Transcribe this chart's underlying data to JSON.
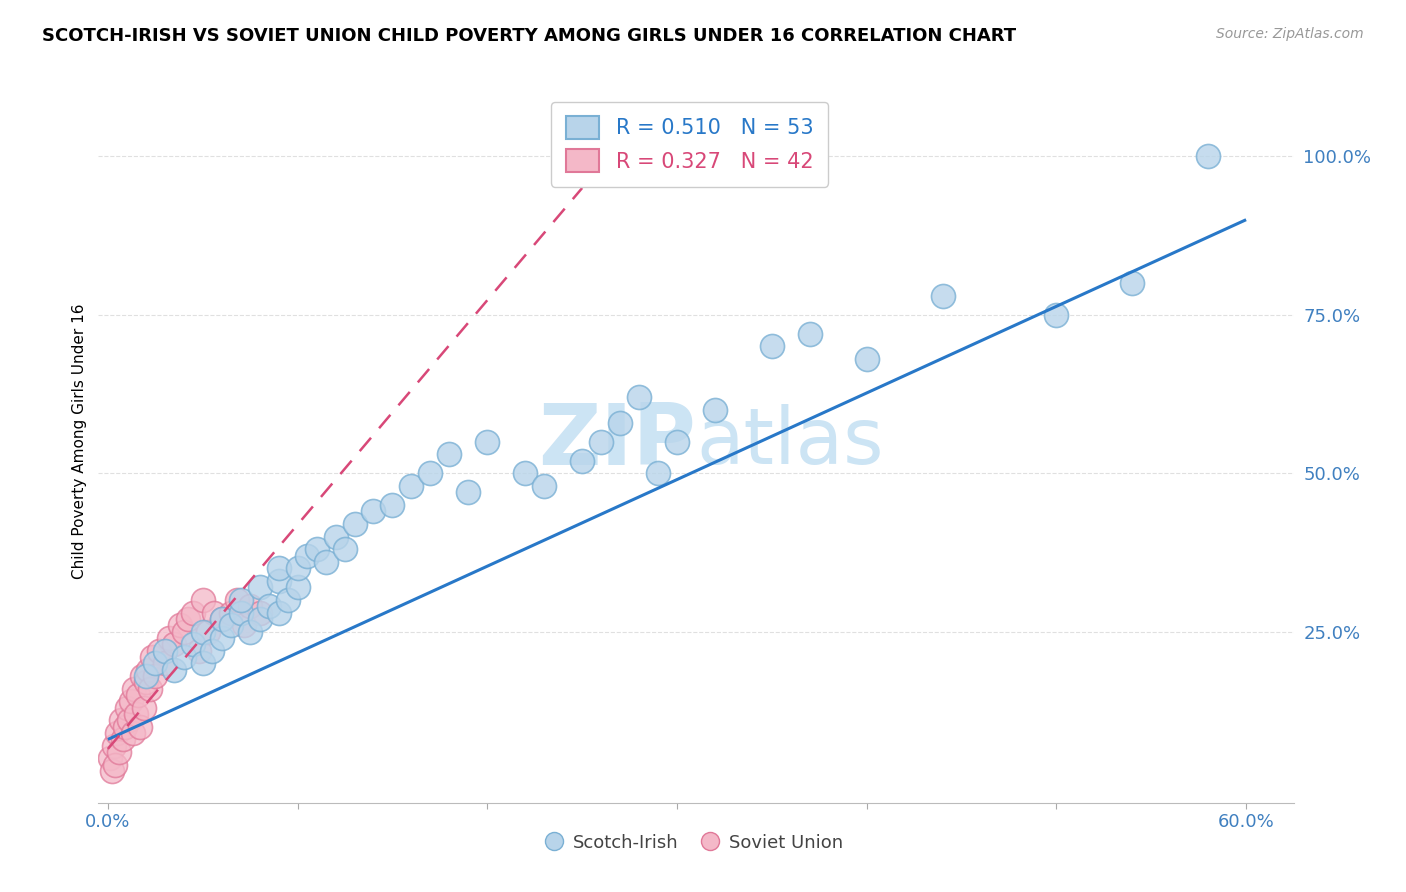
{
  "title": "SCOTCH-IRISH VS SOVIET UNION CHILD POVERTY AMONG GIRLS UNDER 16 CORRELATION CHART",
  "source": "Source: ZipAtlas.com",
  "ylabel": "Child Poverty Among Girls Under 16",
  "xlim": [
    -0.005,
    0.625
  ],
  "ylim": [
    -0.02,
    1.12
  ],
  "xtick_positions": [
    0.0,
    0.1,
    0.2,
    0.3,
    0.4,
    0.5,
    0.6
  ],
  "xticklabels": [
    "0.0%",
    "",
    "",
    "",
    "",
    "",
    "60.0%"
  ],
  "ytick_positions": [
    0.25,
    0.5,
    0.75,
    1.0
  ],
  "ytick_labels": [
    "25.0%",
    "50.0%",
    "75.0%",
    "100.0%"
  ],
  "blue_R": 0.51,
  "blue_N": 53,
  "pink_R": 0.327,
  "pink_N": 42,
  "blue_color": "#b8d4ea",
  "blue_edge": "#7ab0d4",
  "pink_color": "#f4b8c8",
  "pink_edge": "#e07898",
  "blue_line_color": "#2878c8",
  "pink_line_color": "#d84878",
  "grid_color": "#e0e0e0",
  "watermark_color": "#cce4f4",
  "background_color": "#ffffff",
  "scotch_irish_x": [
    0.02,
    0.025,
    0.03,
    0.035,
    0.04,
    0.045,
    0.05,
    0.05,
    0.055,
    0.06,
    0.06,
    0.065,
    0.07,
    0.07,
    0.075,
    0.08,
    0.08,
    0.085,
    0.09,
    0.09,
    0.09,
    0.095,
    0.1,
    0.1,
    0.105,
    0.11,
    0.115,
    0.12,
    0.125,
    0.13,
    0.14,
    0.15,
    0.16,
    0.17,
    0.18,
    0.19,
    0.2,
    0.22,
    0.23,
    0.25,
    0.26,
    0.27,
    0.28,
    0.29,
    0.3,
    0.32,
    0.35,
    0.37,
    0.4,
    0.44,
    0.5,
    0.54,
    0.58
  ],
  "scotch_irish_y": [
    0.18,
    0.2,
    0.22,
    0.19,
    0.21,
    0.23,
    0.2,
    0.25,
    0.22,
    0.24,
    0.27,
    0.26,
    0.28,
    0.3,
    0.25,
    0.27,
    0.32,
    0.29,
    0.28,
    0.33,
    0.35,
    0.3,
    0.32,
    0.35,
    0.37,
    0.38,
    0.36,
    0.4,
    0.38,
    0.42,
    0.44,
    0.45,
    0.48,
    0.5,
    0.53,
    0.47,
    0.55,
    0.5,
    0.48,
    0.52,
    0.55,
    0.58,
    0.62,
    0.5,
    0.55,
    0.6,
    0.7,
    0.72,
    0.68,
    0.78,
    0.75,
    0.8,
    1.0
  ],
  "soviet_x": [
    0.001,
    0.002,
    0.003,
    0.004,
    0.005,
    0.006,
    0.007,
    0.008,
    0.009,
    0.01,
    0.011,
    0.012,
    0.013,
    0.014,
    0.015,
    0.016,
    0.017,
    0.018,
    0.019,
    0.02,
    0.021,
    0.022,
    0.023,
    0.025,
    0.027,
    0.03,
    0.032,
    0.035,
    0.038,
    0.04,
    0.042,
    0.045,
    0.048,
    0.05,
    0.053,
    0.056,
    0.06,
    0.065,
    0.068,
    0.072,
    0.075,
    0.08
  ],
  "soviet_y": [
    0.05,
    0.03,
    0.07,
    0.04,
    0.09,
    0.06,
    0.11,
    0.08,
    0.1,
    0.13,
    0.11,
    0.14,
    0.09,
    0.16,
    0.12,
    0.15,
    0.1,
    0.18,
    0.13,
    0.17,
    0.19,
    0.16,
    0.21,
    0.18,
    0.22,
    0.2,
    0.24,
    0.23,
    0.26,
    0.25,
    0.27,
    0.28,
    0.22,
    0.3,
    0.25,
    0.28,
    0.27,
    0.28,
    0.3,
    0.26,
    0.29,
    0.28
  ],
  "blue_line_x0": 0.0,
  "blue_line_x1": 0.6,
  "blue_line_y0": 0.08,
  "blue_line_y1": 0.9,
  "pink_line_x0": 0.0,
  "pink_line_x1": 0.25,
  "pink_line_y0": 0.065,
  "pink_line_y1": 0.95
}
